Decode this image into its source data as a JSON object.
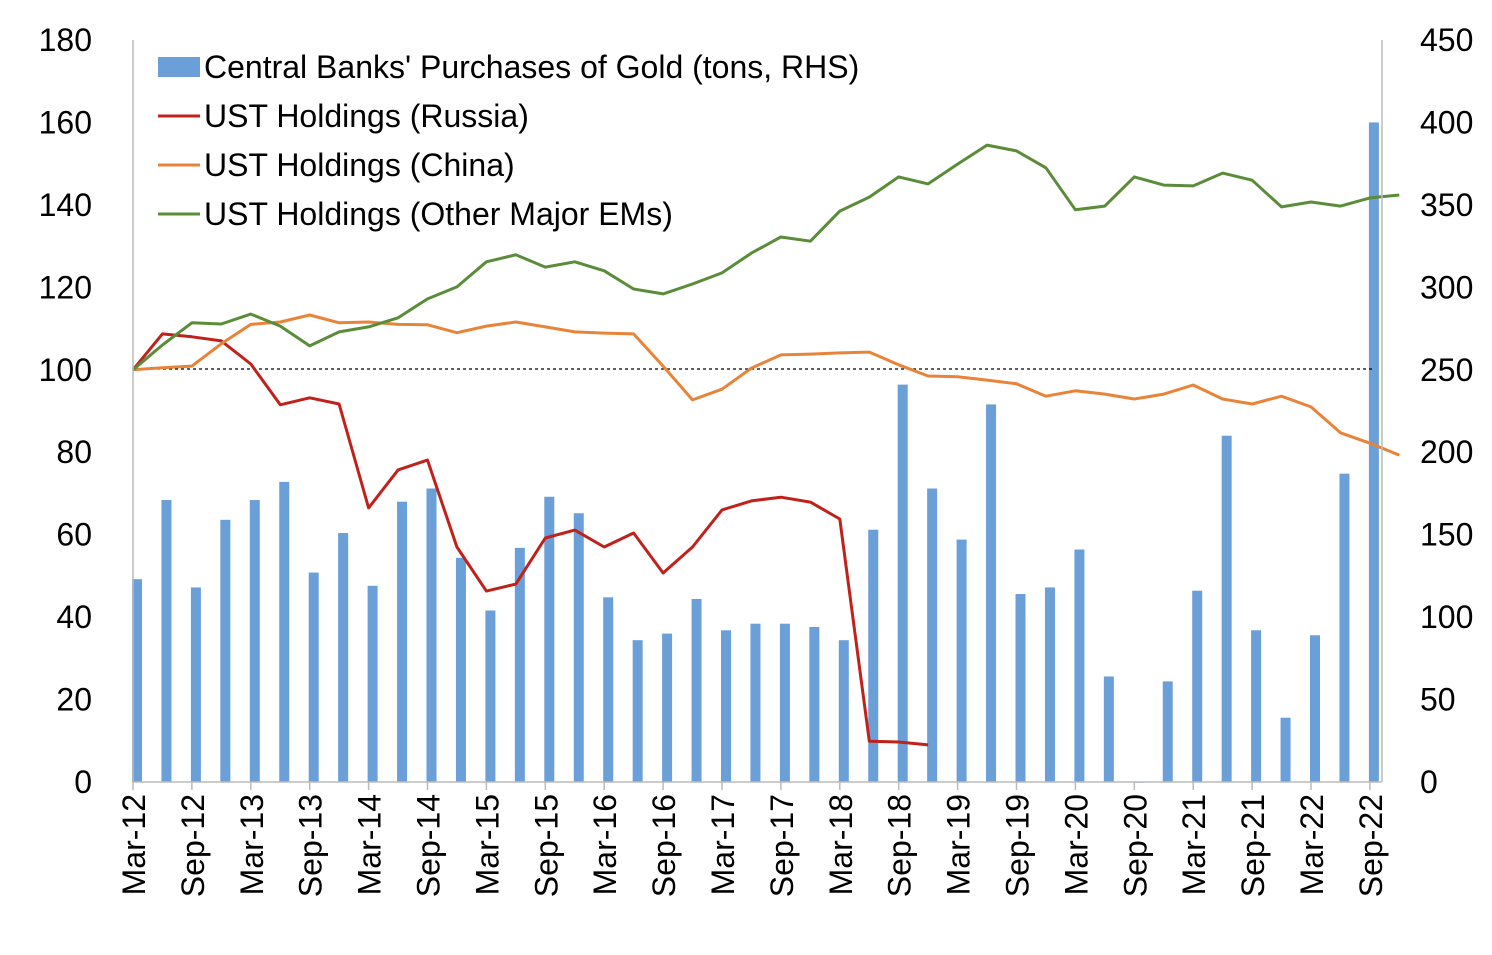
{
  "chart_data": {
    "type": "bar+line",
    "title": "",
    "left_axis": {
      "min": 0,
      "max": 180,
      "ticks": [
        0,
        20,
        40,
        60,
        80,
        100,
        120,
        140,
        160,
        180
      ]
    },
    "right_axis": {
      "min": 0,
      "max": 450,
      "ticks": [
        0,
        50,
        100,
        150,
        200,
        250,
        300,
        350,
        400,
        450
      ]
    },
    "x_tick_labels": [
      "Mar-12",
      "Sep-12",
      "Mar-13",
      "Sep-13",
      "Mar-14",
      "Sep-14",
      "Mar-15",
      "Sep-15",
      "Mar-16",
      "Sep-16",
      "Mar-17",
      "Sep-17",
      "Mar-18",
      "Sep-18",
      "Mar-19",
      "Sep-19",
      "Mar-20",
      "Sep-20",
      "Mar-21",
      "Sep-21",
      "Mar-22",
      "Sep-22"
    ],
    "reference_line": 100,
    "legend_position": "top-left",
    "series": [
      {
        "name": "Central Banks' Purchases of Gold (tons, RHS)",
        "type": "bar",
        "axis": "right",
        "color": "#6a9fd8",
        "values": [
          123,
          171,
          118,
          159,
          171,
          182,
          127,
          151,
          119,
          170,
          178,
          136,
          104,
          142,
          173,
          163,
          112,
          86,
          90,
          111,
          92,
          96,
          96,
          94,
          86,
          153,
          241,
          178,
          147,
          229,
          114,
          118,
          141,
          64,
          0,
          61,
          116,
          210,
          92,
          39,
          89,
          187,
          400
        ]
      },
      {
        "name": "UST Holdings (Russia)",
        "type": "line",
        "axis": "left",
        "color": "#c0221b",
        "values": [
          100,
          108.7,
          108,
          107,
          101.4,
          91.5,
          93.2,
          91.7,
          66.5,
          75.7,
          78.1,
          57,
          46.3,
          48,
          59.2,
          61.1,
          57,
          60.4,
          50.7,
          57,
          66,
          68.2,
          69.1,
          67.9,
          63.8,
          9.9,
          9.7,
          9
        ]
      },
      {
        "name": "UST Holdings (China)",
        "type": "line",
        "axis": "left",
        "color": "#e8843a",
        "values": [
          100,
          100.5,
          100.9,
          106.3,
          111,
          111.6,
          113.3,
          111.4,
          111.6,
          111,
          110.9,
          109,
          110.6,
          111.6,
          110.4,
          109.2,
          108.9,
          108.7,
          100.9,
          92.7,
          95.3,
          100.4,
          103.6,
          103.8,
          104.1,
          104.3,
          101.2,
          98.5,
          98.3,
          97.5,
          96.6,
          93.6,
          94.9,
          94.1,
          92.9,
          94.1,
          96.3,
          92.9,
          91.7,
          93.6,
          91,
          84.7,
          82.2,
          79.3
        ]
      },
      {
        "name": "UST Holdings (Other Major EMs)",
        "type": "line",
        "axis": "left",
        "color": "#5b8c3a",
        "values": [
          100,
          106,
          111.4,
          111.1,
          113.5,
          110.6,
          105.8,
          109.2,
          110.4,
          112.6,
          117.2,
          120.1,
          126.2,
          127.9,
          124.9,
          126.2,
          124,
          119.6,
          118.4,
          120.8,
          123.5,
          128.3,
          132.2,
          131.2,
          138.5,
          141.9,
          146.8,
          145.1,
          149.9,
          154.5,
          153.1,
          149,
          138.8,
          139.7,
          146.8,
          144.8,
          144.6,
          147.7,
          146,
          139.5,
          140.7,
          139.7,
          141.7,
          142.4
        ]
      }
    ]
  }
}
